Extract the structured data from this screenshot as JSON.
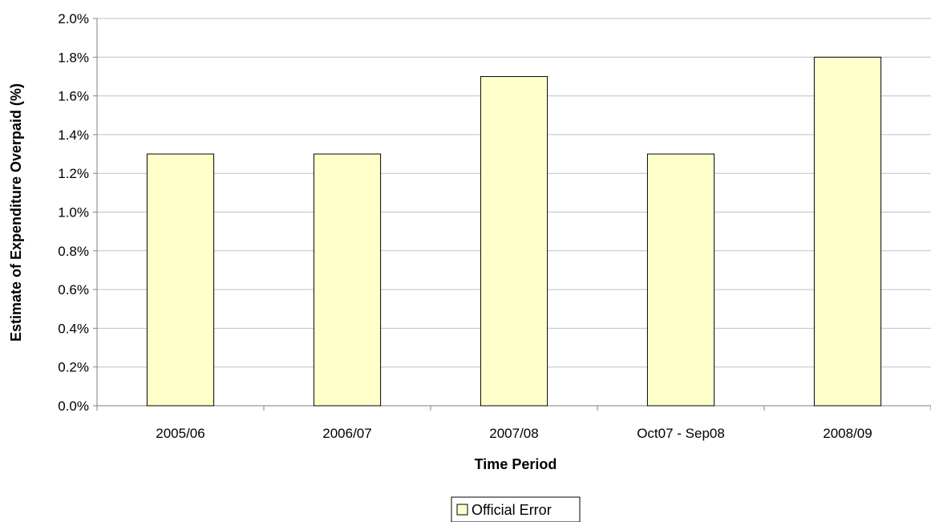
{
  "chart_data": {
    "type": "bar",
    "title": "",
    "xlabel": "Time Period",
    "ylabel": "Estimate of Expenditure Overpaid (%)",
    "categories": [
      "2005/06",
      "2006/07",
      "2007/08",
      "Oct07 - Sep08",
      "2008/09"
    ],
    "series": [
      {
        "name": "Official Error",
        "values": [
          1.3,
          1.3,
          1.7,
          1.3,
          1.8
        ],
        "color": "#ffffcc"
      }
    ],
    "ylim": [
      0,
      2.0
    ],
    "y_ticks": [
      0.0,
      0.2,
      0.4,
      0.6,
      0.8,
      1.0,
      1.2,
      1.4,
      1.6,
      1.8,
      2.0
    ],
    "y_tick_labels": [
      "0.0%",
      "0.2%",
      "0.4%",
      "0.6%",
      "0.8%",
      "1.0%",
      "1.2%",
      "1.4%",
      "1.6%",
      "1.8%",
      "2.0%"
    ],
    "grid": "horizontal",
    "legend_position": "bottom-center",
    "colors": {
      "bar_fill": "#ffffcc",
      "bar_stroke": "#000000",
      "grid": "#c0c0c0",
      "axis": "#808080"
    }
  }
}
